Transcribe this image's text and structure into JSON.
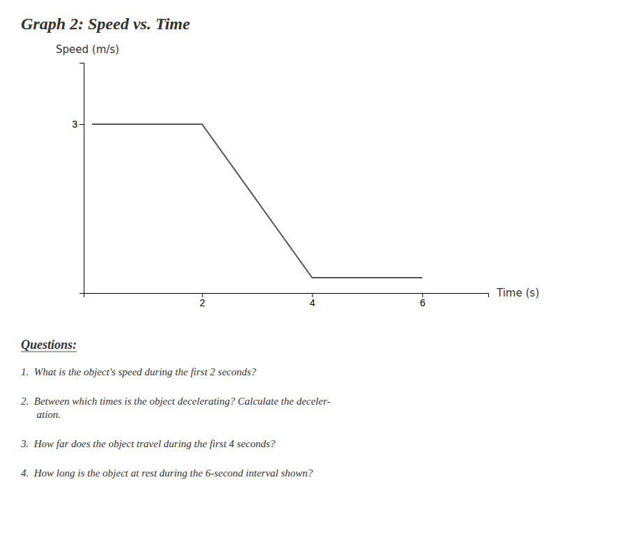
{
  "chart_data": {
    "type": "line",
    "title": "Graph 2: Speed vs. Time",
    "x_label": "Time (s)",
    "y_label": "Speed (m/s)",
    "x": [
      0,
      2,
      4,
      6
    ],
    "values": [
      3,
      3,
      0,
      0
    ],
    "color": "#555555",
    "xlim": [
      -0.15,
      7.2
    ],
    "ylim": [
      -0.3,
      4.2
    ],
    "xticks": [
      2,
      4,
      6
    ],
    "yticks": [
      3
    ],
    "grid": false,
    "annotations": [
      "Questions:",
      "1.  What is the object's speed during the first 2 seconds?",
      "2.  Between which times is the object decelerating? Calculate the deceler-\n      ation.",
      "3.  How far does the object travel during the first 4 seconds?",
      "4.  How long is the object at rest during the 6-second interval shown?"
    ]
  }
}
